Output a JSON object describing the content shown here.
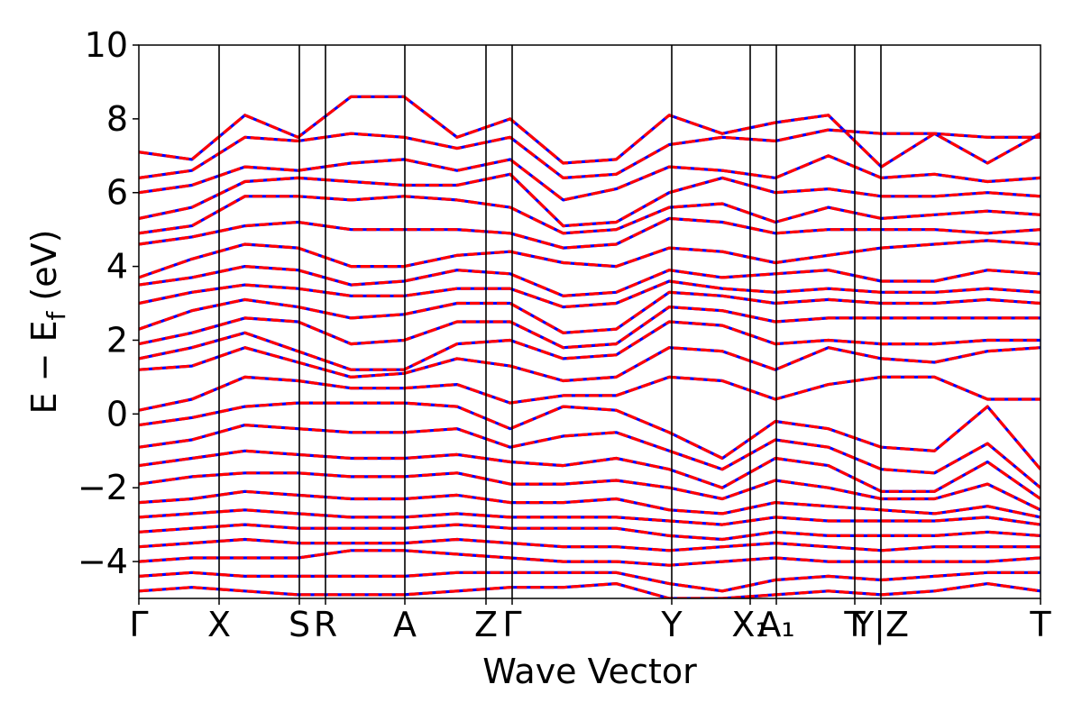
{
  "chart_data": {
    "type": "line",
    "title": "",
    "xlabel": "Wave Vector",
    "ylabel": "E − E",
    "ylabel_subscript": "f",
    "ylabel_unit": "(eV)",
    "ylim": [
      -5,
      10
    ],
    "y_ticks": [
      -4,
      -2,
      0,
      2,
      4,
      6,
      8,
      10
    ],
    "y_tick_labels": [
      "−4",
      "−2",
      "0",
      "2",
      "4",
      "6",
      "8",
      "10"
    ],
    "x_range": [
      0,
      1
    ],
    "k_points": [
      {
        "label": "Γ",
        "x": 0.0
      },
      {
        "label": "X",
        "x": 0.089
      },
      {
        "label": "S",
        "x": 0.178
      },
      {
        "label": "R",
        "x": 0.207
      },
      {
        "label": "A",
        "x": 0.295
      },
      {
        "label": "Z",
        "x": 0.385
      },
      {
        "label": "Γ",
        "x": 0.414
      },
      {
        "label": "Y",
        "x": 0.591
      },
      {
        "label": "X₁",
        "x": 0.678
      },
      {
        "label": "A₁",
        "x": 0.707
      },
      {
        "label": "T",
        "x": 0.794
      },
      {
        "label": "Y|Z",
        "x": 0.823
      },
      {
        "label": "T",
        "x": 1.0
      }
    ],
    "vertical_lines": [
      0.089,
      0.178,
      0.207,
      0.295,
      0.385,
      0.414,
      0.591,
      0.678,
      0.707,
      0.794,
      0.823
    ],
    "grid": false,
    "legend": "none",
    "series_styles": [
      {
        "color": "#0000ff",
        "style": "solid"
      },
      {
        "color": "#ff0000",
        "style": "dashed"
      }
    ],
    "bands": [
      [
        7.1,
        6.9,
        8.1,
        7.5,
        8.6,
        8.6,
        7.5,
        8.0,
        6.8,
        6.9,
        8.1,
        7.6,
        7.9,
        8.1,
        6.7,
        7.6,
        6.8,
        7.6
      ],
      [
        6.4,
        6.6,
        7.5,
        7.4,
        7.6,
        7.5,
        7.2,
        7.5,
        6.4,
        6.5,
        7.3,
        7.5,
        7.4,
        7.7,
        7.6,
        7.6,
        7.5,
        7.5
      ],
      [
        6.0,
        6.2,
        6.7,
        6.6,
        6.8,
        6.9,
        6.6,
        6.9,
        5.8,
        6.1,
        6.7,
        6.6,
        6.4,
        7.0,
        6.4,
        6.5,
        6.3,
        6.4
      ],
      [
        5.3,
        5.6,
        6.3,
        6.4,
        6.3,
        6.2,
        6.2,
        6.5,
        5.1,
        5.2,
        6.0,
        6.4,
        6.0,
        6.1,
        5.9,
        5.9,
        6.0,
        5.9
      ],
      [
        4.9,
        5.1,
        5.9,
        5.9,
        5.8,
        5.9,
        5.8,
        5.6,
        4.9,
        5.0,
        5.6,
        5.7,
        5.2,
        5.6,
        5.3,
        5.4,
        5.5,
        5.4
      ],
      [
        4.6,
        4.8,
        5.1,
        5.2,
        5.0,
        5.0,
        5.0,
        4.9,
        4.5,
        4.6,
        5.3,
        5.2,
        4.9,
        5.0,
        5.0,
        5.0,
        4.9,
        5.0
      ],
      [
        3.7,
        4.2,
        4.6,
        4.5,
        4.0,
        4.0,
        4.3,
        4.4,
        4.1,
        4.0,
        4.5,
        4.4,
        4.1,
        4.3,
        4.5,
        4.6,
        4.7,
        4.6
      ],
      [
        3.5,
        3.7,
        4.0,
        3.9,
        3.5,
        3.6,
        3.9,
        3.8,
        3.2,
        3.3,
        3.9,
        3.7,
        3.8,
        3.9,
        3.6,
        3.6,
        3.9,
        3.8
      ],
      [
        3.0,
        3.3,
        3.5,
        3.4,
        3.2,
        3.2,
        3.4,
        3.4,
        2.9,
        3.0,
        3.6,
        3.4,
        3.3,
        3.4,
        3.3,
        3.3,
        3.4,
        3.3
      ],
      [
        2.3,
        2.8,
        3.1,
        2.9,
        2.6,
        2.7,
        3.0,
        3.0,
        2.2,
        2.3,
        3.3,
        3.2,
        3.0,
        3.1,
        3.0,
        3.0,
        3.1,
        3.0
      ],
      [
        1.9,
        2.2,
        2.6,
        2.5,
        1.9,
        2.0,
        2.5,
        2.5,
        1.8,
        1.9,
        2.9,
        2.8,
        2.5,
        2.6,
        2.6,
        2.6,
        2.6,
        2.6
      ],
      [
        1.5,
        1.8,
        2.2,
        1.7,
        1.2,
        1.2,
        1.9,
        2.0,
        1.5,
        1.6,
        2.5,
        2.4,
        1.9,
        2.0,
        1.9,
        1.9,
        2.0,
        2.0
      ],
      [
        1.2,
        1.3,
        1.8,
        1.4,
        1.0,
        1.1,
        1.5,
        1.3,
        0.9,
        1.0,
        1.8,
        1.7,
        1.2,
        1.8,
        1.5,
        1.4,
        1.7,
        1.8
      ],
      [
        0.1,
        0.4,
        1.0,
        0.9,
        0.7,
        0.7,
        0.8,
        0.3,
        0.5,
        0.5,
        1.0,
        0.9,
        0.4,
        0.8,
        1.0,
        1.0,
        0.4,
        0.4
      ],
      [
        -0.3,
        -0.1,
        0.2,
        0.3,
        0.3,
        0.3,
        0.2,
        -0.4,
        0.2,
        0.1,
        -0.5,
        -1.2,
        -0.2,
        -0.4,
        -0.9,
        -1.0,
        0.2,
        -1.5
      ],
      [
        -0.9,
        -0.7,
        -0.3,
        -0.4,
        -0.5,
        -0.5,
        -0.4,
        -0.9,
        -0.6,
        -0.5,
        -1.0,
        -1.5,
        -0.7,
        -0.9,
        -1.5,
        -1.6,
        -0.8,
        -2.0
      ],
      [
        -1.4,
        -1.2,
        -1.0,
        -1.1,
        -1.2,
        -1.2,
        -1.1,
        -1.3,
        -1.4,
        -1.2,
        -1.5,
        -2.0,
        -1.2,
        -1.4,
        -2.1,
        -2.1,
        -1.3,
        -2.3
      ],
      [
        -1.9,
        -1.7,
        -1.6,
        -1.6,
        -1.7,
        -1.7,
        -1.6,
        -1.9,
        -1.9,
        -1.8,
        -2.0,
        -2.3,
        -1.8,
        -2.0,
        -2.3,
        -2.3,
        -1.9,
        -2.6
      ],
      [
        -2.4,
        -2.3,
        -2.1,
        -2.2,
        -2.3,
        -2.3,
        -2.2,
        -2.4,
        -2.4,
        -2.3,
        -2.6,
        -2.7,
        -2.4,
        -2.5,
        -2.6,
        -2.7,
        -2.5,
        -2.8
      ],
      [
        -2.8,
        -2.7,
        -2.6,
        -2.7,
        -2.8,
        -2.8,
        -2.7,
        -2.8,
        -2.8,
        -2.8,
        -2.9,
        -3.0,
        -2.8,
        -2.9,
        -2.9,
        -2.9,
        -2.8,
        -3.0
      ],
      [
        -3.2,
        -3.1,
        -3.0,
        -3.1,
        -3.1,
        -3.1,
        -3.0,
        -3.1,
        -3.1,
        -3.1,
        -3.3,
        -3.4,
        -3.2,
        -3.3,
        -3.3,
        -3.3,
        -3.2,
        -3.3
      ],
      [
        -3.6,
        -3.5,
        -3.4,
        -3.5,
        -3.5,
        -3.5,
        -3.4,
        -3.5,
        -3.6,
        -3.6,
        -3.7,
        -3.6,
        -3.5,
        -3.6,
        -3.7,
        -3.6,
        -3.6,
        -3.6
      ],
      [
        -4.0,
        -3.9,
        -3.9,
        -3.9,
        -3.7,
        -3.7,
        -3.8,
        -3.9,
        -4.0,
        -4.0,
        -4.1,
        -4.0,
        -3.9,
        -4.0,
        -4.0,
        -4.0,
        -4.0,
        -3.9
      ],
      [
        -4.4,
        -4.3,
        -4.4,
        -4.4,
        -4.4,
        -4.4,
        -4.3,
        -4.3,
        -4.3,
        -4.3,
        -4.6,
        -4.8,
        -4.5,
        -4.4,
        -4.5,
        -4.4,
        -4.3,
        -4.3
      ],
      [
        -4.8,
        -4.7,
        -4.8,
        -4.9,
        -4.9,
        -4.9,
        -4.8,
        -4.7,
        -4.7,
        -4.6,
        -5.0,
        -5.0,
        -4.9,
        -4.8,
        -4.9,
        -4.8,
        -4.6,
        -4.8
      ]
    ]
  }
}
